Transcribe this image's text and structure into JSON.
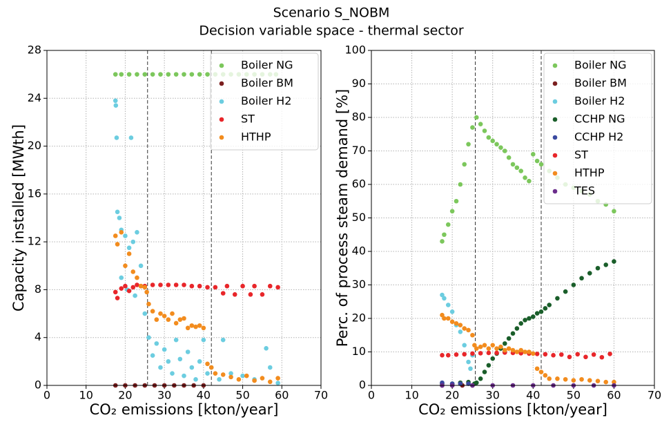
{
  "title": "Scenario S_NOBM",
  "subtitle": "Decision variable space - thermal sector",
  "chart_data": [
    {
      "type": "scatter",
      "xlabel": "CO₂ emissions [kton/year]",
      "ylabel": "Capacity installed  [MWth]",
      "xlim": [
        0,
        70
      ],
      "ylim": [
        0,
        28
      ],
      "xticks": [
        0,
        10,
        20,
        30,
        40,
        50,
        60,
        70
      ],
      "yticks": [
        0,
        4,
        8,
        12,
        16,
        20,
        24,
        28
      ],
      "grid": true,
      "legend": "upper right",
      "vlines": [
        25.7,
        42
      ],
      "series": [
        {
          "name": "Boiler NG",
          "color": "#7cc75c",
          "x": [
            17.5,
            19,
            21,
            23,
            25,
            27,
            29,
            31,
            33,
            35,
            37,
            39,
            41,
            43,
            45,
            47,
            49,
            51,
            53,
            55,
            57,
            58.5
          ],
          "values": [
            26,
            26,
            26,
            26,
            26,
            26,
            26,
            26,
            26,
            26,
            26,
            26,
            26,
            26,
            26,
            26,
            26,
            26,
            26,
            26,
            26,
            26
          ]
        },
        {
          "name": "Boiler BM",
          "color": "#7b1f1f",
          "x": [
            17.5,
            20,
            22.5,
            25,
            27.5,
            30,
            32.5,
            35,
            37.5,
            40
          ],
          "values": [
            0,
            0,
            0,
            0,
            0,
            0,
            0,
            0,
            0,
            0
          ]
        },
        {
          "name": "Boiler H2",
          "color": "#6ccde0",
          "x": [
            17.5,
            17.6,
            17.8,
            21.5,
            18,
            18.5,
            19,
            20,
            21,
            22,
            23,
            24,
            19,
            20.5,
            22.5,
            25,
            26,
            27,
            28,
            29,
            30,
            31,
            32,
            33,
            34,
            35,
            36,
            37,
            38,
            39,
            40,
            41,
            42,
            44,
            45,
            47,
            50,
            53,
            56,
            57,
            59
          ],
          "values": [
            23.8,
            23.4,
            20.7,
            20.7,
            14.5,
            14,
            13,
            12.5,
            11.5,
            12,
            12.8,
            10,
            9,
            8,
            7.5,
            6,
            4,
            2.5,
            3.5,
            1.5,
            3,
            2,
            1,
            3.8,
            2.2,
            0.8,
            2.8,
            1.5,
            0.5,
            2,
            3.8,
            1,
            1.5,
            0.5,
            3.8,
            1,
            0.8,
            0.5,
            3.1,
            1.5,
            0.2
          ]
        },
        {
          "name": "ST",
          "color": "#e8262a",
          "x": [
            17.5,
            18,
            19,
            20,
            21,
            22,
            23,
            24,
            25,
            27,
            29,
            31,
            33,
            35,
            37,
            39,
            41,
            43,
            45,
            46,
            48,
            50,
            52,
            53,
            55,
            57,
            59
          ],
          "values": [
            7.8,
            7.3,
            8.1,
            8.3,
            7.9,
            8.2,
            8.4,
            8.3,
            8.3,
            8.4,
            8.4,
            8.4,
            8.4,
            8.4,
            8.3,
            8.3,
            8.2,
            8.2,
            7.7,
            8.3,
            7.6,
            8.3,
            7.6,
            8.3,
            7.6,
            8.3,
            8.2
          ]
        },
        {
          "name": "HTHP",
          "color": "#f28c1e",
          "x": [
            17.5,
            18,
            19,
            20,
            21,
            22,
            23,
            24,
            25,
            25.5,
            26,
            27,
            28,
            29,
            30,
            31,
            32,
            33,
            34,
            35,
            36,
            37,
            38,
            39,
            40,
            41,
            42,
            43,
            45,
            47,
            49,
            51,
            53,
            55,
            57,
            59
          ],
          "values": [
            12.5,
            11.8,
            12.8,
            10,
            11,
            9.5,
            9,
            8.3,
            8.2,
            7.8,
            6.8,
            6.2,
            5.5,
            6,
            5.8,
            5.5,
            6,
            5.2,
            5.5,
            5.6,
            4.8,
            5,
            4.9,
            5,
            4.8,
            1.8,
            1.5,
            1,
            0.9,
            0.7,
            0.5,
            0.8,
            0.4,
            0.6,
            0.3,
            0.6
          ]
        }
      ]
    },
    {
      "type": "scatter",
      "xlabel": "CO₂ emissions [kton/year]",
      "ylabel": "Perc. of process steam demand [%]",
      "xlim": [
        0,
        70
      ],
      "ylim": [
        0,
        100
      ],
      "xticks": [
        0,
        10,
        20,
        30,
        40,
        50,
        60,
        70
      ],
      "yticks": [
        0,
        10,
        20,
        30,
        40,
        50,
        60,
        70,
        80,
        90,
        100
      ],
      "grid": true,
      "legend": "upper right",
      "vlines": [
        25.7,
        42
      ],
      "series": [
        {
          "name": "Boiler NG",
          "color": "#7cc75c",
          "x": [
            17.5,
            18,
            19,
            20,
            21,
            22,
            23,
            24,
            25,
            26,
            27,
            28,
            29,
            30,
            31,
            32,
            33,
            34,
            35,
            36,
            37,
            38,
            39,
            40,
            41,
            42,
            44,
            46,
            48,
            50,
            52,
            54,
            56,
            58,
            60
          ],
          "values": [
            43,
            45,
            48,
            52,
            55,
            60,
            66,
            72,
            77,
            80,
            78,
            76,
            74,
            73,
            72,
            71,
            70,
            68,
            66,
            65,
            64,
            62,
            61,
            69,
            67,
            66,
            64,
            62,
            60,
            59,
            58,
            57,
            55,
            54,
            52
          ]
        },
        {
          "name": "Boiler BM",
          "color": "#7b1f1f",
          "x": [
            17.5,
            20,
            22.5,
            25
          ],
          "values": [
            0,
            0,
            0,
            0
          ]
        },
        {
          "name": "Boiler H2",
          "color": "#6ccde0",
          "x": [
            17.5,
            18,
            19,
            20,
            21,
            22,
            23,
            24,
            24.5,
            25
          ],
          "values": [
            27,
            26,
            24,
            22,
            18,
            16,
            12,
            7,
            5,
            9
          ]
        },
        {
          "name": "CCHP NG",
          "color": "#1a5e2a",
          "x": [
            17.5,
            20,
            22,
            24,
            25.5,
            26,
            27,
            28,
            29,
            30,
            31,
            32,
            33,
            34,
            35,
            36,
            37,
            38,
            39,
            40,
            41,
            42,
            43,
            44,
            46,
            48,
            50,
            52,
            54,
            56,
            58,
            60
          ],
          "values": [
            0.5,
            0.5,
            0.8,
            1,
            0.5,
            0.8,
            2,
            4,
            6,
            8,
            9.5,
            11,
            12.5,
            14,
            15.5,
            17,
            18.5,
            19.5,
            20,
            20.5,
            21.5,
            22,
            23,
            24,
            26,
            28,
            30,
            32,
            33.5,
            35,
            36,
            37
          ]
        },
        {
          "name": "CCHP H2",
          "color": "#3b4aa0",
          "x": [
            17.5,
            20,
            22,
            24
          ],
          "values": [
            0.8,
            0.5,
            0.5,
            0.5
          ]
        },
        {
          "name": "ST",
          "color": "#e8262a",
          "x": [
            17.5,
            19,
            21,
            23,
            25,
            27,
            29,
            31,
            33,
            35,
            37,
            39,
            41,
            43,
            45,
            47,
            49,
            51,
            53,
            55,
            57,
            59
          ],
          "values": [
            9,
            9,
            9.2,
            9.3,
            9.5,
            9.6,
            9.7,
            9.7,
            9.8,
            9.7,
            9.6,
            9.5,
            9.4,
            9.3,
            9,
            9.2,
            8.5,
            9.3,
            8.5,
            9.2,
            8.4,
            9.4
          ]
        },
        {
          "name": "HTHP",
          "color": "#f28c1e",
          "x": [
            17.5,
            18,
            19,
            20,
            21,
            22,
            23,
            24,
            25,
            25.5,
            26,
            27,
            28,
            29,
            30,
            31,
            32,
            33,
            34,
            35,
            36,
            37,
            38,
            39,
            40,
            41,
            42,
            43,
            44,
            46,
            48,
            50,
            52,
            54,
            56,
            58,
            60
          ],
          "values": [
            21,
            20,
            20,
            19,
            18.5,
            18,
            17,
            16.5,
            15,
            12,
            11,
            11.5,
            12,
            11,
            12,
            11,
            11.5,
            10.5,
            11,
            10.5,
            10,
            10.5,
            10,
            10,
            9.5,
            5,
            4,
            3,
            2,
            2,
            1.8,
            1.5,
            1.8,
            1.5,
            1.3,
            1,
            1
          ]
        },
        {
          "name": "TES",
          "color": "#6b2d8c",
          "x": [
            17.5,
            20,
            25,
            30,
            35,
            40,
            45,
            50,
            55,
            60
          ],
          "values": [
            0,
            0,
            0,
            0,
            0,
            0,
            0,
            0,
            0,
            0
          ]
        }
      ]
    }
  ]
}
